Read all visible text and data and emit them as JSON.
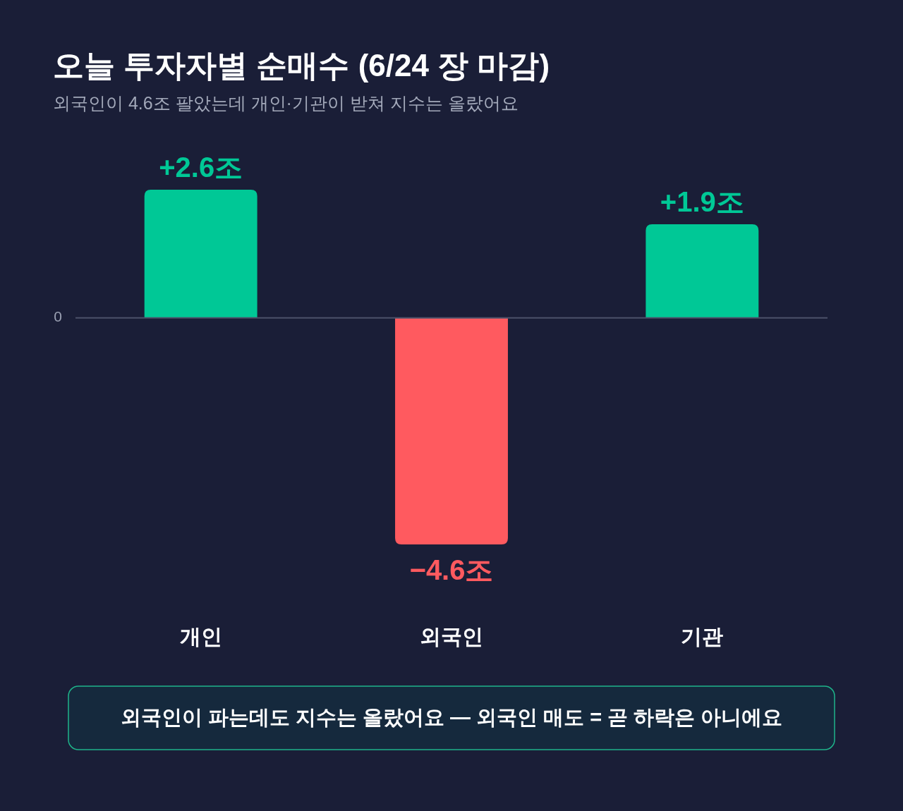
{
  "chart_data": {
    "type": "bar",
    "title": "오늘 투자자별 순매수 (6/24 장 마감)",
    "subtitle": "외국인이 4.6조 팔았는데 개인·기관이 받쳐 지수는 올랐어요",
    "categories": [
      "개인",
      "외국인",
      "기관"
    ],
    "values": [
      2.6,
      -4.6,
      1.9
    ],
    "colors": [
      "#00c896",
      "#ff5a5f",
      "#00c896"
    ],
    "value_labels": [
      "+2.6조",
      "−4.6조",
      "+1.9조"
    ],
    "ref_lines": [
      {
        "axis": "y",
        "value": 0,
        "label": "0",
        "color": "#4b5169"
      }
    ],
    "annotations": [
      "외국인이 파는데도 지수는 올랐어요 — 외국인 매도 = 곧 하락은 아니에요"
    ]
  }
}
